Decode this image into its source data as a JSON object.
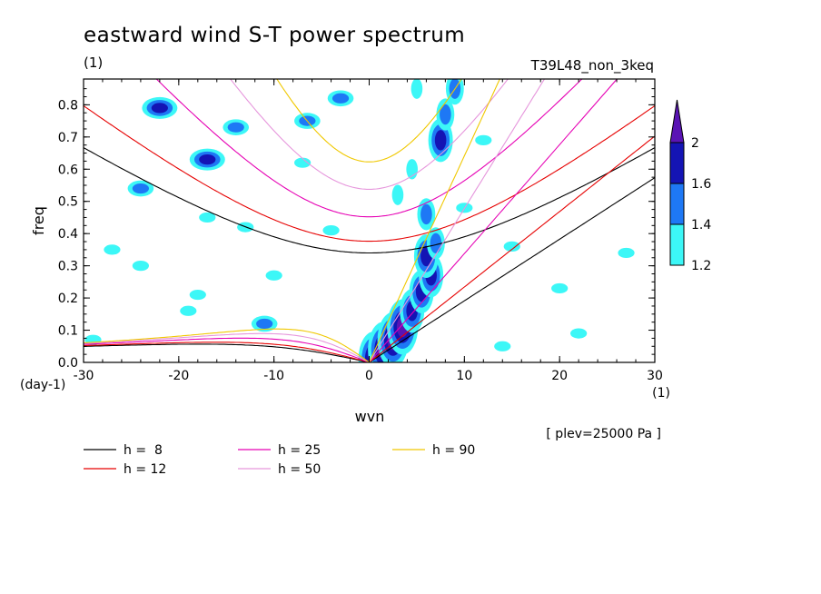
{
  "chart_data": {
    "type": "contour",
    "title": "eastward wind S-T power spectrum",
    "title_unit": "(1)",
    "experiment": "T39L48_non_3keq",
    "xlabel": "wvn",
    "x_unit": "(1)",
    "ylabel": "freq",
    "y_unit": "(day-1)",
    "note": "[ plev=25000 Pa ]",
    "xlim": [
      -30,
      30
    ],
    "ylim": [
      0,
      0.88
    ],
    "xticks": [
      "-30",
      "-20",
      "-10",
      "0",
      "10",
      "20",
      "30"
    ],
    "xtick_values": [
      -30,
      -20,
      -10,
      0,
      10,
      20,
      30
    ],
    "yticks": [
      "0.0",
      "0.1",
      "0.2",
      "0.3",
      "0.4",
      "0.5",
      "0.6",
      "0.7",
      "0.8"
    ],
    "ytick_values": [
      0,
      0.1,
      0.2,
      0.3,
      0.4,
      0.5,
      0.6,
      0.7,
      0.8
    ],
    "colorbar": {
      "levels": [
        1.2,
        1.4,
        1.6,
        2
      ],
      "labels": [
        "1.2",
        "1.4",
        "1.6",
        "2"
      ],
      "colors": [
        "#3cf7f7",
        "#1e78f5",
        "#1414b4",
        "#5a14b4"
      ]
    },
    "dispersion_curves": [
      {
        "name": "h =  8",
        "h": 8,
        "color": "#000000"
      },
      {
        "name": "h = 12",
        "h": 12,
        "color": "#e60000"
      },
      {
        "name": "h = 25",
        "h": 25,
        "color": "#e600b4"
      },
      {
        "name": "h = 50",
        "h": 50,
        "color": "#e696dc"
      },
      {
        "name": "h = 90",
        "h": 90,
        "color": "#f0c800"
      }
    ],
    "spectral_peaks": [
      {
        "x": 0.5,
        "y": 0.01,
        "level": 2
      },
      {
        "x": 1.5,
        "y": 0.04,
        "level": 2
      },
      {
        "x": 2.5,
        "y": 0.07,
        "level": 2
      },
      {
        "x": 3.5,
        "y": 0.11,
        "level": 2
      },
      {
        "x": 4.5,
        "y": 0.16,
        "level": 1.6
      },
      {
        "x": 5.5,
        "y": 0.22,
        "level": 1.6
      },
      {
        "x": 6.5,
        "y": 0.27,
        "level": 1.6
      },
      {
        "x": 6.0,
        "y": 0.33,
        "level": 1.6
      },
      {
        "x": 7.0,
        "y": 0.37,
        "level": 1.4
      },
      {
        "x": 6.0,
        "y": 0.46,
        "level": 1.4
      },
      {
        "x": 7.5,
        "y": 0.69,
        "level": 1.6
      },
      {
        "x": 8.0,
        "y": 0.77,
        "level": 1.4
      },
      {
        "x": 9.0,
        "y": 0.85,
        "level": 1.4
      },
      {
        "x": 4.5,
        "y": 0.6,
        "level": 1.2
      },
      {
        "x": 3.0,
        "y": 0.52,
        "level": 1.2
      },
      {
        "x": -17,
        "y": 0.63,
        "level": 1.6
      },
      {
        "x": -22,
        "y": 0.79,
        "level": 1.6
      },
      {
        "x": -24,
        "y": 0.54,
        "level": 1.4
      },
      {
        "x": -14,
        "y": 0.73,
        "level": 1.4
      },
      {
        "x": -6.5,
        "y": 0.75,
        "level": 1.4
      },
      {
        "x": -3,
        "y": 0.82,
        "level": 1.4
      },
      {
        "x": -13,
        "y": 0.42,
        "level": 1.2
      },
      {
        "x": -17,
        "y": 0.45,
        "level": 1.2
      },
      {
        "x": -27,
        "y": 0.35,
        "level": 1.2
      },
      {
        "x": -11,
        "y": 0.12,
        "level": 1.4
      },
      {
        "x": -19,
        "y": 0.16,
        "level": 1.2
      },
      {
        "x": -29,
        "y": 0.07,
        "level": 1.2
      },
      {
        "x": 5,
        "y": 0.85,
        "level": 1.2
      },
      {
        "x": 12,
        "y": 0.69,
        "level": 1.2
      },
      {
        "x": 15,
        "y": 0.36,
        "level": 1.2
      },
      {
        "x": 20,
        "y": 0.23,
        "level": 1.2
      },
      {
        "x": 27,
        "y": 0.34,
        "level": 1.2
      },
      {
        "x": -10,
        "y": 0.27,
        "level": 1.2
      },
      {
        "x": -24,
        "y": 0.3,
        "level": 1.2
      },
      {
        "x": -4,
        "y": 0.41,
        "level": 1.2
      },
      {
        "x": 22,
        "y": 0.09,
        "level": 1.2
      },
      {
        "x": 14,
        "y": 0.05,
        "level": 1.2
      },
      {
        "x": -7,
        "y": 0.62,
        "level": 1.2
      },
      {
        "x": -18,
        "y": 0.21,
        "level": 1.2
      },
      {
        "x": 10,
        "y": 0.48,
        "level": 1.2
      }
    ]
  }
}
